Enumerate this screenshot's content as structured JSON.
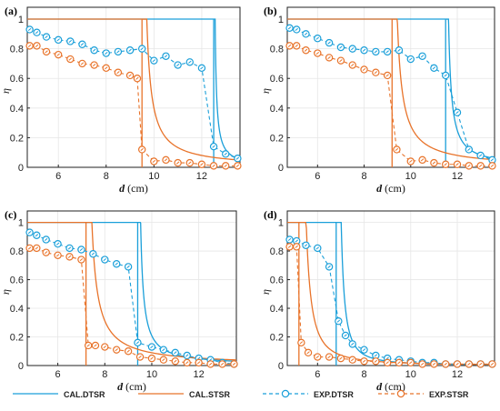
{
  "colors": {
    "dtsr": "#1a9fd9",
    "stsr": "#e8732a",
    "axis": "#222222",
    "grid": "#e6e6e6"
  },
  "legend": [
    {
      "label": "CAL.DTSR",
      "color": "#1a9fd9",
      "style": "solid",
      "marker": false
    },
    {
      "label": "CAL.STSR",
      "color": "#e8732a",
      "style": "solid",
      "marker": false
    },
    {
      "label": "EXP.DTSR",
      "color": "#1a9fd9",
      "style": "dashed",
      "marker": true
    },
    {
      "label": "EXP.STSR",
      "color": "#e8732a",
      "style": "dashed",
      "marker": true
    }
  ],
  "chart_data": [
    {
      "panel": "(a)",
      "type": "line",
      "xlabel_var": "d",
      "xlabel_unit": "(cm)",
      "ylabel": "η",
      "xlim": [
        4.7,
        13.6
      ],
      "ylim": [
        0,
        1.08
      ],
      "xticks": [
        6,
        8,
        10,
        12
      ],
      "yticks": [
        0,
        0.2,
        0.4,
        0.6,
        0.8,
        1
      ],
      "grid": true,
      "series": [
        {
          "name": "CAL.DTSR",
          "cutoff": 12.5,
          "k": 0.12,
          "tail_power": 1
        },
        {
          "name": "CAL.STSR",
          "cutoff": 9.5,
          "k": 0.4,
          "tail_power": 1
        },
        {
          "name": "EXP.DTSR",
          "x": [
            4.8,
            5.1,
            5.5,
            6.0,
            6.5,
            7.0,
            7.5,
            8.0,
            8.5,
            9.0,
            9.5,
            10.0,
            10.5,
            11.0,
            11.5,
            12.0,
            12.5,
            13.0,
            13.5
          ],
          "y": [
            0.93,
            0.91,
            0.88,
            0.86,
            0.85,
            0.83,
            0.79,
            0.77,
            0.78,
            0.79,
            0.8,
            0.72,
            0.75,
            0.69,
            0.71,
            0.67,
            0.14,
            0.09,
            0.06
          ]
        },
        {
          "name": "EXP.STSR",
          "x": [
            4.8,
            5.1,
            5.5,
            6.0,
            6.5,
            7.0,
            7.5,
            8.0,
            8.5,
            9.0,
            9.3,
            9.5,
            10.0,
            10.5,
            11.0,
            11.5,
            12.0,
            12.5,
            13.0,
            13.5
          ],
          "y": [
            0.82,
            0.82,
            0.78,
            0.76,
            0.73,
            0.7,
            0.69,
            0.67,
            0.64,
            0.62,
            0.6,
            0.12,
            0.04,
            0.05,
            0.03,
            0.03,
            0.02,
            0.01,
            0.01,
            0.01
          ]
        }
      ]
    },
    {
      "panel": "(b)",
      "type": "line",
      "xlabel_var": "d",
      "xlabel_unit": "(cm)",
      "ylabel": "η",
      "xlim": [
        4.7,
        13.6
      ],
      "ylim": [
        0,
        1.08
      ],
      "xticks": [
        6,
        8,
        10,
        12
      ],
      "yticks": [
        0,
        0.2,
        0.4,
        0.6,
        0.8,
        1
      ],
      "grid": true,
      "series": [
        {
          "name": "CAL.DTSR",
          "cutoff": 11.5,
          "k": 0.25,
          "tail_power": 1
        },
        {
          "name": "CAL.STSR",
          "cutoff": 9.2,
          "k": 0.45,
          "tail_power": 1
        },
        {
          "name": "EXP.DTSR",
          "x": [
            4.8,
            5.1,
            5.5,
            6.0,
            6.5,
            7.0,
            7.5,
            8.0,
            8.5,
            9.0,
            9.5,
            10.0,
            10.5,
            11.0,
            11.5,
            12.0,
            12.5,
            13.0,
            13.5
          ],
          "y": [
            0.94,
            0.93,
            0.9,
            0.87,
            0.84,
            0.81,
            0.8,
            0.79,
            0.78,
            0.78,
            0.79,
            0.73,
            0.75,
            0.67,
            0.62,
            0.37,
            0.12,
            0.08,
            0.05
          ]
        },
        {
          "name": "EXP.STSR",
          "x": [
            4.8,
            5.1,
            5.5,
            6.0,
            6.5,
            7.0,
            7.5,
            8.0,
            8.5,
            9.0,
            9.4,
            10.0,
            10.5,
            11.0,
            11.5,
            12.0,
            12.5,
            13.0,
            13.5
          ],
          "y": [
            0.82,
            0.82,
            0.79,
            0.77,
            0.74,
            0.72,
            0.69,
            0.66,
            0.64,
            0.62,
            0.12,
            0.04,
            0.05,
            0.03,
            0.02,
            0.02,
            0.01,
            0.01,
            0.01
          ]
        }
      ]
    },
    {
      "panel": "(c)",
      "type": "line",
      "xlabel_var": "d",
      "xlabel_unit": "(cm)",
      "ylabel": "η",
      "xlim": [
        4.7,
        13.6
      ],
      "ylim": [
        0,
        1.08
      ],
      "xticks": [
        6,
        8,
        10,
        12
      ],
      "yticks": [
        0,
        0.2,
        0.4,
        0.6,
        0.8,
        1
      ],
      "grid": true,
      "series": [
        {
          "name": "CAL.DTSR",
          "cutoff": 9.4,
          "k": 0.25,
          "tail_power": 1
        },
        {
          "name": "CAL.STSR",
          "cutoff": 7.2,
          "k": 0.5,
          "tail_power": 1
        },
        {
          "name": "EXP.DTSR",
          "x": [
            4.8,
            5.1,
            5.5,
            6.0,
            6.5,
            7.0,
            7.5,
            8.0,
            8.5,
            9.0,
            9.4,
            10.0,
            10.5,
            11.0,
            11.5,
            12.0,
            12.5,
            13.0,
            13.5
          ],
          "y": [
            0.93,
            0.91,
            0.88,
            0.85,
            0.82,
            0.81,
            0.78,
            0.74,
            0.71,
            0.69,
            0.16,
            0.13,
            0.11,
            0.09,
            0.07,
            0.05,
            0.04,
            0.02,
            0.01
          ]
        },
        {
          "name": "EXP.STSR",
          "x": [
            4.8,
            5.1,
            5.5,
            6.0,
            6.5,
            7.0,
            7.3,
            7.6,
            8.0,
            8.5,
            9.0,
            9.5,
            10.0,
            10.5,
            11.0,
            11.5,
            12.0,
            12.5,
            13.0,
            13.5
          ],
          "y": [
            0.82,
            0.82,
            0.79,
            0.77,
            0.76,
            0.74,
            0.14,
            0.14,
            0.13,
            0.11,
            0.1,
            0.06,
            0.05,
            0.04,
            0.03,
            0.02,
            0.02,
            0.01,
            0.01,
            0.01
          ]
        }
      ]
    },
    {
      "panel": "(d)",
      "type": "line",
      "xlabel_var": "d",
      "xlabel_unit": "(cm)",
      "ylabel": "η",
      "xlim": [
        4.7,
        13.6
      ],
      "ylim": [
        0,
        1.08
      ],
      "xticks": [
        6,
        8,
        10,
        12
      ],
      "yticks": [
        0,
        0.2,
        0.4,
        0.6,
        0.8,
        1
      ],
      "grid": true,
      "series": [
        {
          "name": "CAL.DTSR",
          "cutoff": 6.8,
          "k": 0.2,
          "tail_power": 1.5
        },
        {
          "name": "CAL.STSR",
          "cutoff": 5.2,
          "k": 0.35,
          "tail_power": 1.5
        },
        {
          "name": "EXP.DTSR",
          "x": [
            4.8,
            5.1,
            5.5,
            6.0,
            6.5,
            6.9,
            7.2,
            7.5,
            8.0,
            8.5,
            9.0,
            9.5,
            10.0,
            10.5,
            11.0,
            11.5,
            12.0,
            12.5,
            13.0,
            13.5
          ],
          "y": [
            0.88,
            0.87,
            0.84,
            0.82,
            0.69,
            0.31,
            0.21,
            0.15,
            0.11,
            0.07,
            0.05,
            0.04,
            0.03,
            0.02,
            0.02,
            0.01,
            0.01,
            0.01,
            0.01,
            0.01
          ]
        },
        {
          "name": "EXP.STSR",
          "x": [
            4.8,
            5.1,
            5.3,
            5.6,
            6.0,
            6.5,
            7.0,
            7.5,
            8.0,
            8.5,
            9.0,
            9.5,
            10.0,
            10.5,
            11.0,
            11.5,
            12.0,
            12.5,
            13.0,
            13.5
          ],
          "y": [
            0.83,
            0.83,
            0.16,
            0.09,
            0.06,
            0.06,
            0.05,
            0.04,
            0.03,
            0.03,
            0.02,
            0.02,
            0.02,
            0.01,
            0.01,
            0.01,
            0.01,
            0.01,
            0.01,
            0.01
          ]
        }
      ]
    }
  ]
}
